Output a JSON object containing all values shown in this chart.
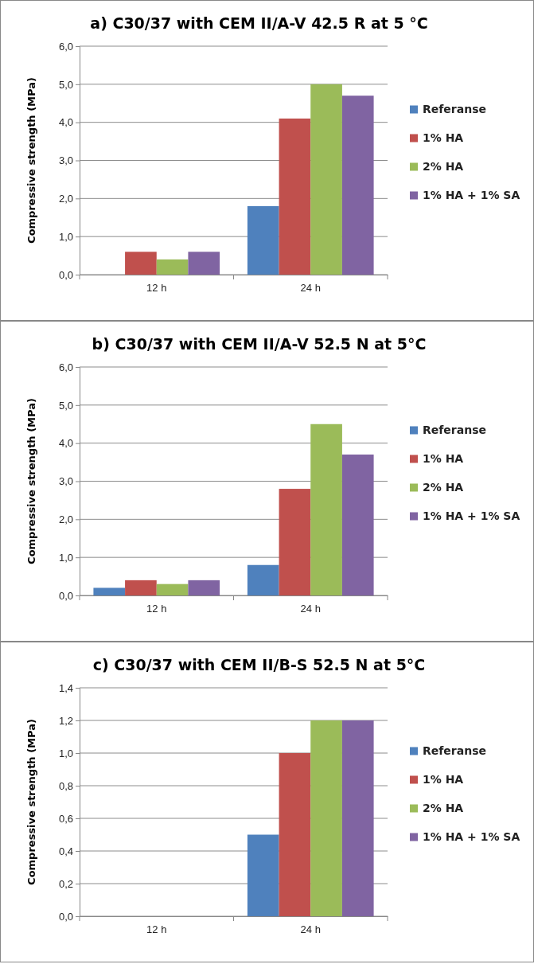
{
  "chart_data": [
    {
      "type": "bar",
      "title": "a)  C30/37 with CEM II/A-V 42.5 R at 5 °C",
      "ylabel": "Compressive strength (MPa)",
      "categories": [
        "12 h",
        "24 h"
      ],
      "ylim": [
        0,
        6
      ],
      "yticks": [
        {
          "value": 0,
          "label": "0,0"
        },
        {
          "value": 1,
          "label": "1,0"
        },
        {
          "value": 2,
          "label": "2,0"
        },
        {
          "value": 3,
          "label": "3,0"
        },
        {
          "value": 4,
          "label": "4,0"
        },
        {
          "value": 5,
          "label": "5,0"
        },
        {
          "value": 6,
          "label": "6,0"
        }
      ],
      "grid": "y",
      "legend": "right",
      "series": [
        {
          "name": "Referanse",
          "color": "#4f81bd",
          "values": [
            null,
            1.8
          ]
        },
        {
          "name": "1% HA",
          "color": "#c0504d",
          "values": [
            0.6,
            4.1
          ]
        },
        {
          "name": "2% HA",
          "color": "#9bbb59",
          "values": [
            0.4,
            5.0
          ]
        },
        {
          "name": "1% HA + 1% SA",
          "color": "#8064a2",
          "values": [
            0.6,
            4.7
          ]
        }
      ]
    },
    {
      "type": "bar",
      "title": "b)  C30/37 with CEM II/A-V 52.5 N at 5°C",
      "ylabel": "Compressive strength (MPa)",
      "categories": [
        "12 h",
        "24 h"
      ],
      "ylim": [
        0,
        6
      ],
      "yticks": [
        {
          "value": 0,
          "label": "0,0"
        },
        {
          "value": 1,
          "label": "1,0"
        },
        {
          "value": 2,
          "label": "2,0"
        },
        {
          "value": 3,
          "label": "3,0"
        },
        {
          "value": 4,
          "label": "4,0"
        },
        {
          "value": 5,
          "label": "5,0"
        },
        {
          "value": 6,
          "label": "6,0"
        }
      ],
      "grid": "y",
      "legend": "right",
      "series": [
        {
          "name": "Referanse",
          "color": "#4f81bd",
          "values": [
            0.2,
            0.8
          ]
        },
        {
          "name": "1% HA",
          "color": "#c0504d",
          "values": [
            0.4,
            2.8
          ]
        },
        {
          "name": "2% HA",
          "color": "#9bbb59",
          "values": [
            0.3,
            4.5
          ]
        },
        {
          "name": "1% HA + 1% SA",
          "color": "#8064a2",
          "values": [
            0.4,
            3.7
          ]
        }
      ]
    },
    {
      "type": "bar",
      "title": "c) C30/37 with CEM II/B-S 52.5 N at 5°C",
      "ylabel": "Compressive strength (MPa)",
      "categories": [
        "12 h",
        "24 h"
      ],
      "ylim": [
        0,
        1.4
      ],
      "yticks": [
        {
          "value": 0,
          "label": "0,0"
        },
        {
          "value": 0.2,
          "label": "0,2"
        },
        {
          "value": 0.4,
          "label": "0,4"
        },
        {
          "value": 0.6,
          "label": "0,6"
        },
        {
          "value": 0.8,
          "label": "0,8"
        },
        {
          "value": 1.0,
          "label": "1,0"
        },
        {
          "value": 1.2,
          "label": "1,2"
        },
        {
          "value": 1.4,
          "label": "1,4"
        }
      ],
      "grid": "y",
      "legend": "right",
      "series": [
        {
          "name": "Referanse",
          "color": "#4f81bd",
          "values": [
            null,
            0.5
          ]
        },
        {
          "name": "1% HA",
          "color": "#c0504d",
          "values": [
            null,
            1.0
          ]
        },
        {
          "name": "2% HA",
          "color": "#9bbb59",
          "values": [
            null,
            1.2
          ]
        },
        {
          "name": "1% HA + 1% SA",
          "color": "#8064a2",
          "values": [
            null,
            1.2
          ]
        }
      ]
    }
  ]
}
